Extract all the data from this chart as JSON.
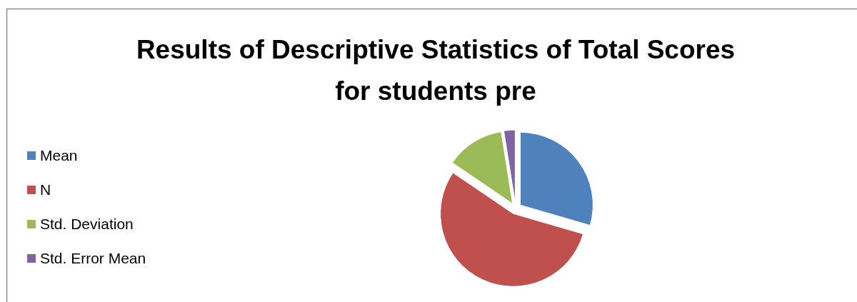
{
  "chart_data": {
    "type": "pie",
    "title": "Results of Descriptive Statistics of Total Scores for students pre",
    "categories": [
      "Mean",
      "N",
      "Std. Deviation",
      "Std. Error Mean"
    ],
    "values": [
      29.5,
      55,
      13,
      2.5
    ],
    "colors": [
      "#4f81bd",
      "#c0504d",
      "#9bbb59",
      "#8064a2"
    ],
    "legend": "left"
  }
}
